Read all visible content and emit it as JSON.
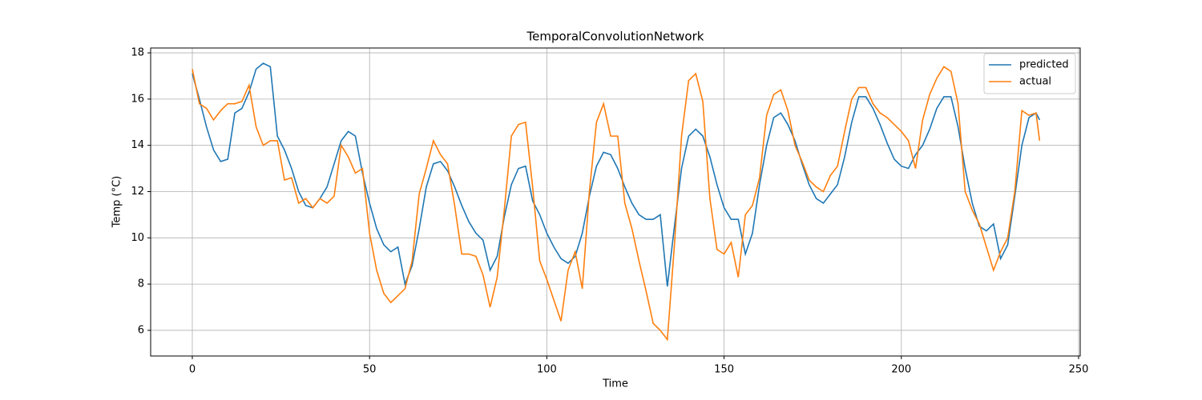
{
  "chart_data": {
    "type": "line",
    "title": "TemporalConvolutionNetwork",
    "x_label": "Time",
    "y_label": "Temp (°C)",
    "x": [
      0,
      2,
      4,
      6,
      8,
      10,
      12,
      14,
      16,
      18,
      20,
      22,
      24,
      26,
      28,
      30,
      32,
      34,
      36,
      38,
      40,
      42,
      44,
      46,
      48,
      50,
      52,
      54,
      56,
      58,
      60,
      62,
      64,
      66,
      68,
      70,
      72,
      74,
      76,
      78,
      80,
      82,
      84,
      86,
      88,
      90,
      92,
      94,
      96,
      98,
      100,
      102,
      104,
      106,
      108,
      110,
      112,
      114,
      116,
      118,
      120,
      122,
      124,
      126,
      128,
      130,
      132,
      134,
      136,
      138,
      140,
      142,
      144,
      146,
      148,
      150,
      152,
      154,
      156,
      158,
      160,
      162,
      164,
      166,
      168,
      170,
      172,
      174,
      176,
      178,
      180,
      182,
      184,
      186,
      188,
      190,
      192,
      194,
      196,
      198,
      200,
      202,
      204,
      206,
      208,
      210,
      212,
      214,
      216,
      218,
      220,
      222,
      224,
      226,
      228,
      230,
      232,
      234,
      236,
      238,
      239
    ],
    "series": [
      {
        "name": "predicted",
        "color": "#1f77b4",
        "values": [
          17.1,
          16.0,
          14.8,
          13.8,
          13.3,
          13.4,
          15.4,
          15.6,
          16.3,
          17.3,
          17.55,
          17.4,
          14.4,
          13.8,
          13.0,
          12.0,
          11.4,
          11.3,
          11.7,
          12.2,
          13.2,
          14.2,
          14.6,
          14.4,
          12.8,
          11.5,
          10.4,
          9.7,
          9.4,
          9.6,
          8.0,
          8.8,
          10.4,
          12.2,
          13.2,
          13.3,
          12.9,
          12.2,
          11.4,
          10.7,
          10.2,
          9.9,
          8.6,
          9.2,
          10.9,
          12.3,
          13.0,
          13.1,
          11.6,
          11.0,
          10.2,
          9.6,
          9.1,
          8.9,
          9.2,
          10.2,
          11.8,
          13.1,
          13.7,
          13.6,
          13.0,
          12.2,
          11.5,
          11.0,
          10.8,
          10.8,
          11.0,
          7.9,
          10.5,
          13.0,
          14.4,
          14.7,
          14.4,
          13.5,
          12.3,
          11.3,
          10.8,
          10.8,
          9.3,
          10.2,
          12.3,
          14.0,
          15.2,
          15.4,
          14.9,
          14.2,
          13.2,
          12.3,
          11.7,
          11.5,
          11.9,
          12.3,
          13.5,
          15.0,
          16.1,
          16.1,
          15.6,
          14.9,
          14.1,
          13.4,
          13.1,
          13.0,
          13.6,
          14.0,
          14.7,
          15.6,
          16.1,
          16.1,
          14.8,
          13.0,
          11.5,
          10.5,
          10.3,
          10.6,
          9.1,
          9.7,
          11.8,
          14.0,
          15.2,
          15.4,
          15.1
        ]
      },
      {
        "name": "actual",
        "color": "#ff7f0e",
        "values": [
          17.3,
          15.8,
          15.6,
          15.1,
          15.5,
          15.8,
          15.8,
          15.9,
          16.6,
          14.8,
          14.0,
          14.2,
          14.2,
          12.5,
          12.6,
          11.5,
          11.7,
          11.3,
          11.7,
          11.5,
          11.8,
          14.0,
          13.5,
          12.8,
          13.0,
          10.2,
          8.6,
          7.6,
          7.2,
          7.5,
          7.8,
          9.0,
          11.9,
          13.0,
          14.2,
          13.6,
          13.2,
          11.4,
          9.3,
          9.3,
          9.2,
          8.4,
          7.0,
          8.3,
          11.2,
          14.4,
          14.9,
          15.0,
          12.2,
          9.0,
          8.2,
          7.3,
          6.4,
          8.6,
          9.4,
          7.8,
          12.0,
          15.0,
          15.8,
          14.4,
          14.4,
          11.5,
          10.4,
          9.0,
          7.7,
          6.3,
          6.0,
          5.6,
          9.7,
          14.4,
          16.8,
          17.1,
          15.9,
          11.7,
          9.5,
          9.3,
          9.8,
          8.3,
          11.0,
          11.4,
          12.6,
          15.3,
          16.2,
          16.4,
          15.5,
          14.0,
          13.3,
          12.5,
          12.2,
          12.0,
          12.7,
          13.1,
          14.6,
          16.0,
          16.5,
          16.5,
          15.8,
          15.4,
          15.2,
          14.9,
          14.6,
          14.2,
          13.0,
          15.1,
          16.2,
          16.9,
          17.4,
          17.2,
          15.8,
          12.0,
          11.2,
          10.6,
          9.6,
          8.6,
          9.4,
          10.0,
          12.0,
          15.5,
          15.3,
          15.4,
          14.2
        ]
      }
    ],
    "xlim": [
      -11.75,
      250.45
    ],
    "ylim": [
      4.89,
      18.21
    ],
    "xticks": [
      0,
      50,
      100,
      150,
      200,
      250
    ],
    "yticks": [
      6,
      8,
      10,
      12,
      14,
      16,
      18
    ],
    "grid": true,
    "legend": "upper right"
  }
}
